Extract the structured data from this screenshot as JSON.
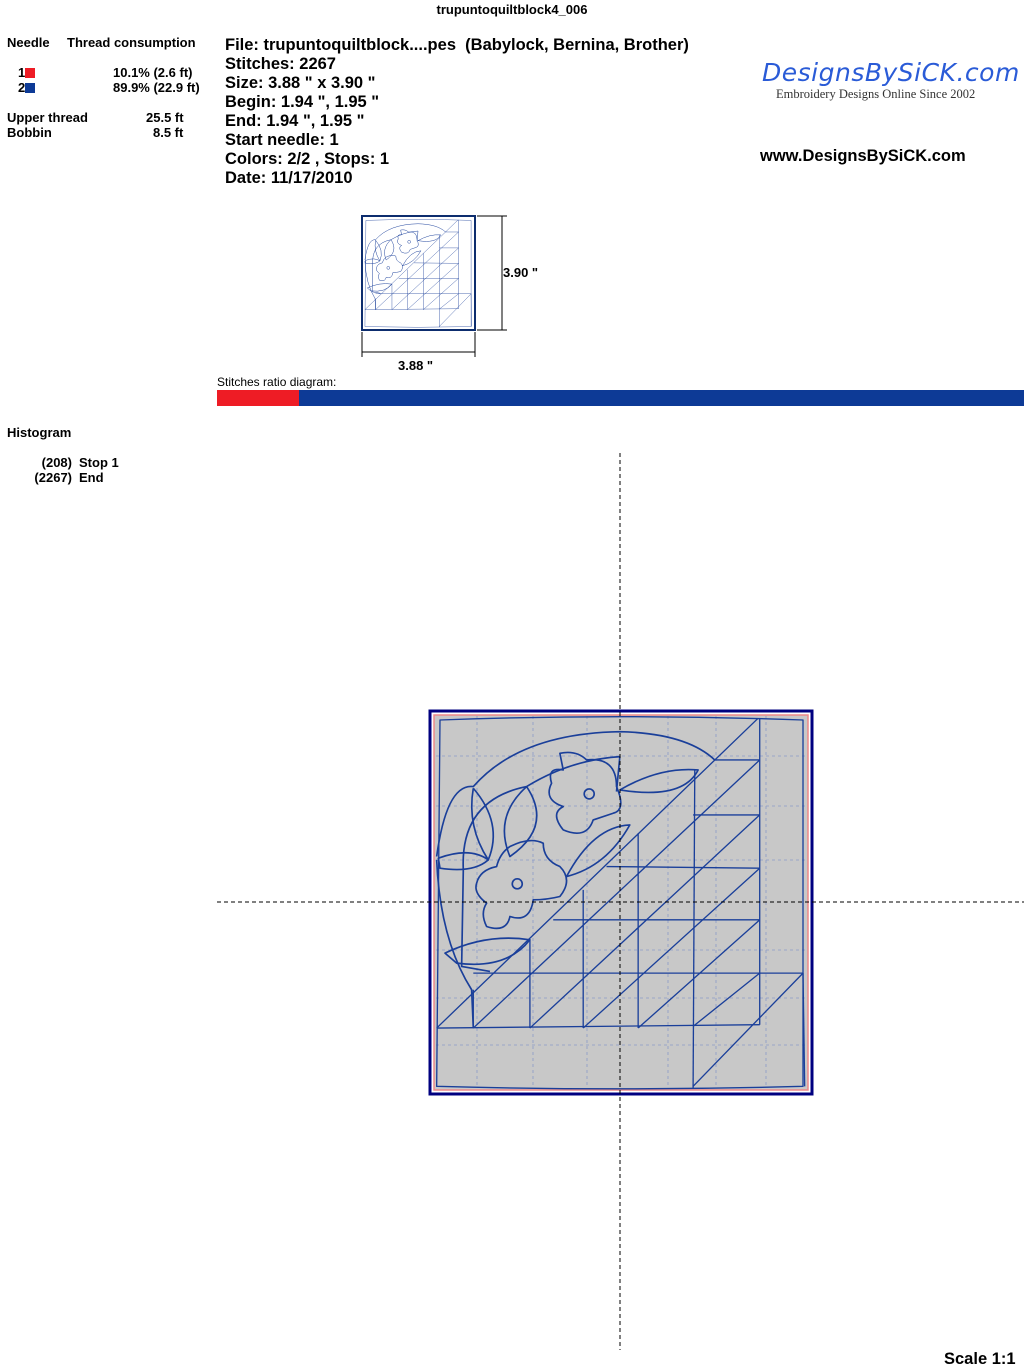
{
  "title": "trupuntoquiltblock4_006",
  "thread_table": {
    "header_needle": "Needle",
    "header_consumption": "Thread consumption",
    "needles": [
      {
        "number": "1",
        "color": "#ee1c25",
        "consumption": "10.1% (2.6 ft)"
      },
      {
        "number": "2",
        "color": "#0d3a96",
        "consumption": "89.9% (22.9 ft)"
      }
    ],
    "upper_thread_label": "Upper thread",
    "upper_thread_value": "25.5 ft",
    "bobbin_label": "Bobbin",
    "bobbin_value": "8.5 ft"
  },
  "info": {
    "file": "File: trupuntoquiltblock....pes  (Babylock, Bernina, Brother)",
    "stitches": "Stitches: 2267",
    "size": "Size: 3.88 \" x 3.90 \"",
    "begin": "Begin: 1.94 \", 1.95 \"",
    "end": "End: 1.94 \", 1.95 \"",
    "start_needle": "Start needle: 1",
    "colors": "Colors: 2/2 , Stops: 1",
    "date": "Date: 11/17/2010"
  },
  "logo": {
    "text": "DesignsBySiCK.com",
    "tagline": "Embroidery Designs Online Since 2002"
  },
  "website": "www.DesignsBySiCK.com",
  "thumbnail": {
    "height_label": "3.90 \"",
    "width_label": "3.88 \""
  },
  "ratio": {
    "label": "Stitches ratio diagram:",
    "fractions": [
      0.101,
      0.899
    ]
  },
  "histogram": {
    "title": "Histogram",
    "entries": [
      {
        "count": "(208)",
        "label": "Stop 1"
      },
      {
        "count": "(2267)",
        "label": "End"
      }
    ]
  },
  "scale": "Scale 1:1"
}
